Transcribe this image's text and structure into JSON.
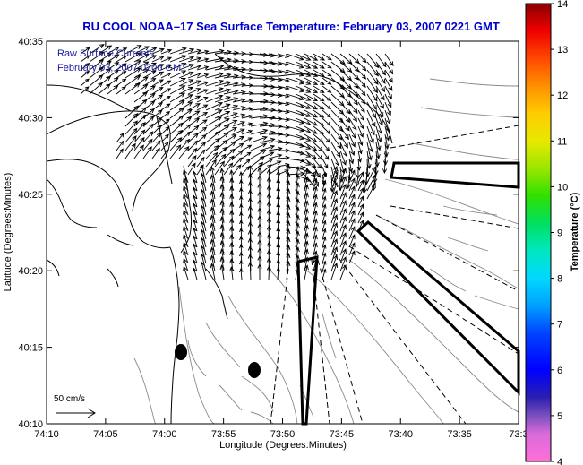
{
  "title": "RU COOL  NOAA–17  Sea Surface Temperature:  February 03, 2007 0221 GMT",
  "legend": {
    "line1": "Raw Surface Currents",
    "line2": "February 03, 2007 0200 GMT"
  },
  "axes": {
    "xlabel": "Longitude (Degrees:Minutes)",
    "ylabel": "Latitude (Degrees:Minutes)",
    "xticks": [
      "74:10",
      "74:05",
      "74:00",
      "73:55",
      "73:50",
      "73:45",
      "73:40",
      "73:35",
      "73:3"
    ],
    "yticks": [
      "40:35",
      "40:30",
      "40:25",
      "40:20",
      "40:15",
      "40:10"
    ]
  },
  "scale_arrow_label": "50 cm/s",
  "colorbar": {
    "label": "Temperature (°C)",
    "ticks": [
      "14",
      "13",
      "12",
      "11",
      "10",
      "9",
      "8",
      "7",
      "6",
      "5",
      "4"
    ]
  },
  "colors": {
    "title": "#0000cc",
    "legend_text": "#1a1aa0",
    "coast": "#000000",
    "bathymetry": "#888888"
  }
}
